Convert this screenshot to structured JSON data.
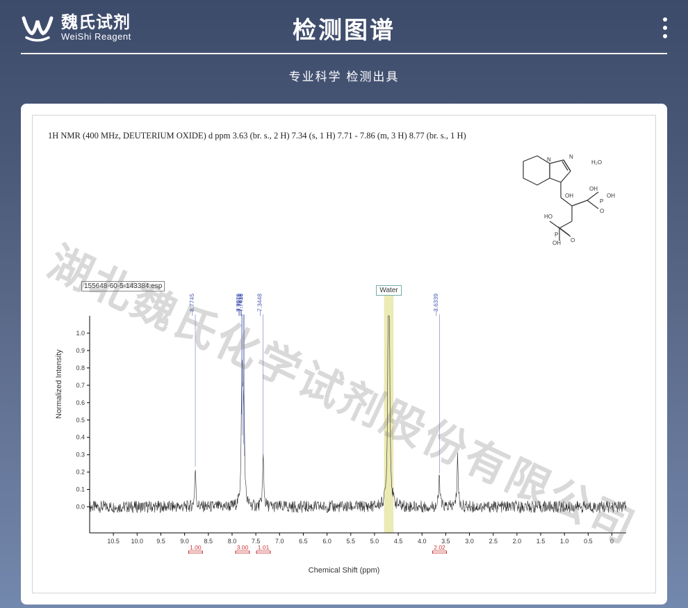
{
  "header": {
    "logo_cn": "魏氏试剂",
    "logo_en": "WeiShi Reagent",
    "title": "检测图谱",
    "subtitle": "专业科学  检测出具"
  },
  "nmr_description": "1H NMR (400 MHz, DEUTERIUM OXIDE) d ppm 3.63 (br. s., 2 H) 7.34 (s, 1 H) 7.71 - 7.86 (m, 3 H) 8.77 (br. s., 1 H)",
  "esp_label": "155648-60-5-143384.esp",
  "water_label": "Water",
  "watermark_text": "湖北魏氏化学试剂股份有限公司",
  "structure_label_h2o": "H₂O",
  "chart": {
    "type": "nmr-spectrum",
    "xlabel": "Chemical Shift (ppm)",
    "ylabel": "Normalized Intensity",
    "xlim": [
      11.0,
      -0.3
    ],
    "ylim": [
      -0.15,
      1.1
    ],
    "xticks": [
      10.5,
      10.0,
      9.5,
      9.0,
      8.5,
      8.0,
      7.5,
      7.0,
      6.5,
      6.0,
      5.5,
      5.0,
      4.5,
      4.0,
      3.5,
      3.0,
      2.5,
      2.0,
      1.5,
      1.0,
      0.5,
      0
    ],
    "yticks": [
      0,
      0.1,
      0.2,
      0.3,
      0.4,
      0.5,
      0.6,
      0.7,
      0.8,
      0.9,
      1.0
    ],
    "tick_fontsize": 9,
    "label_fontsize": 11,
    "line_color": "#2a2a2a",
    "axis_color": "#000000",
    "peak_label_color": "#4a5ab0",
    "integral_color": "#d03030",
    "integral_bar_color": "#c02020",
    "water_highlight_color": "#dcd978",
    "water_highlight_opacity": 0.55,
    "background_color": "#ffffff",
    "peaks": [
      {
        "ppm": 8.7745,
        "height": 0.22,
        "label": "8.7745"
      },
      {
        "ppm": 7.797,
        "height": 0.52,
        "label": "7.7970"
      },
      {
        "ppm": 7.7811,
        "height": 0.4,
        "label": "7.7811"
      },
      {
        "ppm": 7.7613,
        "height": 0.35,
        "label": "7.7613"
      },
      {
        "ppm": 7.7435,
        "height": 0.28,
        "label": "7.7435"
      },
      {
        "ppm": 7.3448,
        "height": 0.29,
        "label": "7.3448"
      },
      {
        "ppm": 4.7,
        "height": 2.5,
        "label": ""
      },
      {
        "ppm": 3.6339,
        "height": 0.18,
        "label": "3.6339"
      },
      {
        "ppm": 3.25,
        "height": 0.3,
        "label": ""
      }
    ],
    "integrals": [
      {
        "ppm": 8.77,
        "value": "1.00"
      },
      {
        "ppm": 7.78,
        "value": "3.00"
      },
      {
        "ppm": 7.34,
        "value": "1.01"
      },
      {
        "ppm": 3.63,
        "value": "2.02"
      }
    ],
    "water_peak_ppm": 4.7,
    "noise_amplitude": 0.035
  },
  "colors": {
    "page_bg_top": "#3d4b6b",
    "page_bg_bottom": "#7388ad",
    "card_bg": "#ffffff",
    "border": "#d4d4d4",
    "text_white": "#ffffff"
  }
}
